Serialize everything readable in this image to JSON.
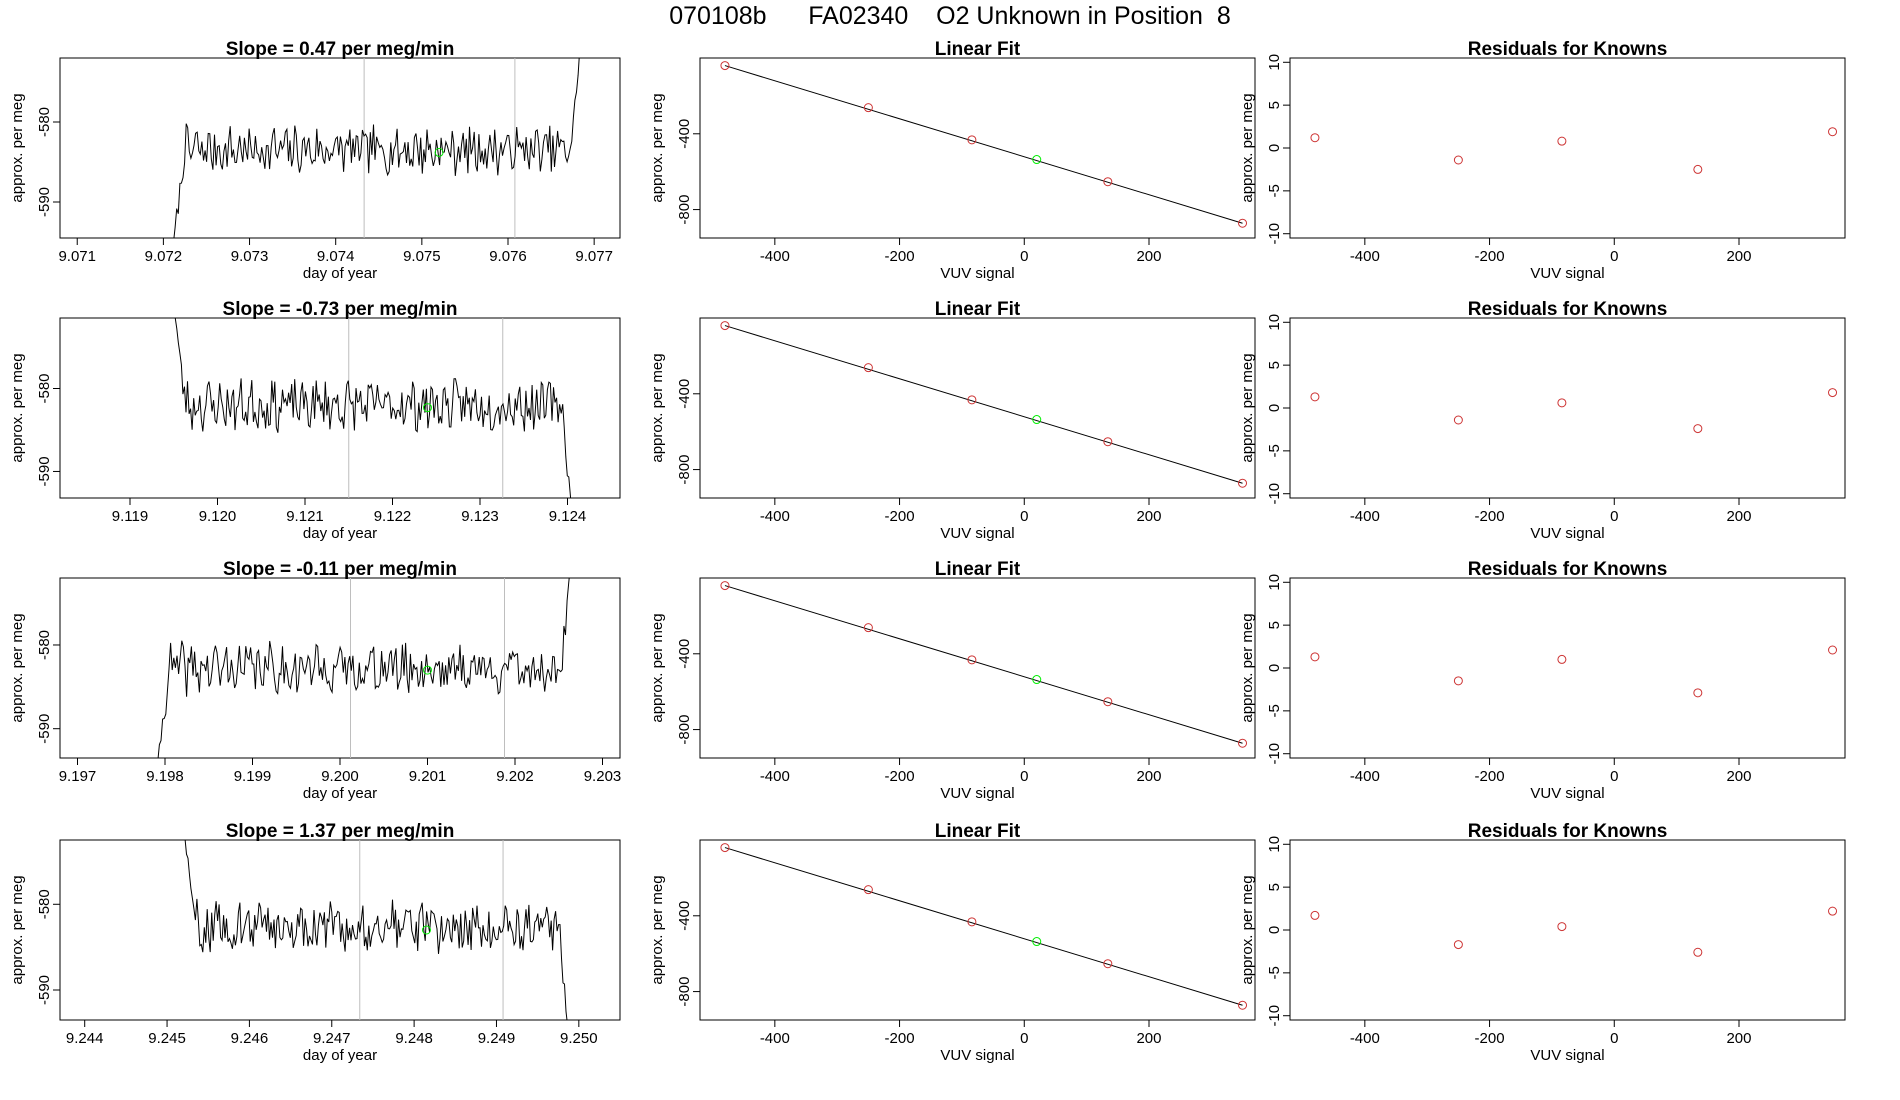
{
  "figure_title": "070108b      FA02340    O2 Unknown in Position  8",
  "colors": {
    "trace": "#000000",
    "vline": "#bebebe",
    "known": "#cd3333",
    "unknown": "#00ee00",
    "fitline": "#000000"
  },
  "chart_data": [
    {
      "type": "line",
      "row": 1,
      "title": "Slope =  0.47  per meg/min",
      "xlabel": "day of year",
      "ylabel": "approx. per meg",
      "xlim": [
        9.0708,
        9.0773
      ],
      "ylim": [
        -594.5,
        -572
      ],
      "xticks": [
        9.071,
        9.072,
        9.073,
        9.074,
        9.075,
        9.076,
        9.077
      ],
      "xtick_labels": [
        "9.071",
        "9.072",
        "9.073",
        "9.074",
        "9.075",
        "9.076",
        "9.077"
      ],
      "yticks": [
        -580,
        -590
      ],
      "ytick_labels": [
        "-580",
        "-590"
      ],
      "start_x": 9.0721,
      "end_x": 9.07685,
      "base": -583.5,
      "trace_start": -597,
      "trace_end": -569,
      "seed": 7,
      "vlines": [
        9.07433,
        9.07608
      ],
      "unknown_point": {
        "x": 9.0752,
        "y": -583.8
      }
    },
    {
      "type": "line",
      "row": 2,
      "title": "Slope =  -0.73  per meg/min",
      "xlabel": "day of year",
      "ylabel": "approx. per meg",
      "xlim": [
        9.1182,
        9.1246
      ],
      "ylim": [
        -593.2,
        -571.5
      ],
      "xticks": [
        9.119,
        9.12,
        9.121,
        9.122,
        9.123,
        9.124
      ],
      "xtick_labels": [
        "9.119",
        "9.120",
        "9.121",
        "9.122",
        "9.123",
        "9.124"
      ],
      "yticks": [
        -580,
        -590
      ],
      "ytick_labels": [
        "-580",
        "-590"
      ],
      "start_x": 9.1195,
      "end_x": 9.12405,
      "base": -582.0,
      "trace_start": -570,
      "trace_end": -595,
      "seed": 23,
      "vlines": [
        9.1215,
        9.12326
      ],
      "unknown_point": {
        "x": 9.1224,
        "y": -582.3
      }
    },
    {
      "type": "line",
      "row": 3,
      "title": "Slope =  -0.11  per meg/min",
      "xlabel": "day of year",
      "ylabel": "approx. per meg",
      "xlim": [
        9.1968,
        9.2032
      ],
      "ylim": [
        -593.5,
        -572
      ],
      "xticks": [
        9.197,
        9.198,
        9.199,
        9.2,
        9.201,
        9.202,
        9.203
      ],
      "xtick_labels": [
        "9.197",
        "9.198",
        "9.199",
        "9.200",
        "9.201",
        "9.202",
        "9.203"
      ],
      "yticks": [
        -580,
        -590
      ],
      "ytick_labels": [
        "-580",
        "-590"
      ],
      "start_x": 9.1979,
      "end_x": 9.20265,
      "base": -582.8,
      "trace_start": -596,
      "trace_end": -569,
      "seed": 41,
      "vlines": [
        9.20012,
        9.20188
      ],
      "unknown_point": {
        "x": 9.201,
        "y": -583.0
      }
    },
    {
      "type": "line",
      "row": 4,
      "title": "Slope =  1.37  per meg/min",
      "xlabel": "day of year",
      "ylabel": "approx. per meg",
      "xlim": [
        9.2437,
        9.2505
      ],
      "ylim": [
        -593.5,
        -572.5
      ],
      "xticks": [
        9.244,
        9.245,
        9.246,
        9.247,
        9.248,
        9.249,
        9.25
      ],
      "xtick_labels": [
        "9.244",
        "9.245",
        "9.246",
        "9.247",
        "9.248",
        "9.249",
        "9.250"
      ],
      "yticks": [
        -580,
        -590
      ],
      "ytick_labels": [
        "-580",
        "-590"
      ],
      "start_x": 9.2452,
      "end_x": 9.24988,
      "base": -582.6,
      "trace_start": -571,
      "trace_end": -596,
      "seed": 59,
      "vlines": [
        9.24734,
        9.24908
      ],
      "unknown_point": {
        "x": 9.24815,
        "y": -583.0
      }
    },
    {
      "type": "scatter",
      "row": 1,
      "title": "Linear Fit",
      "xlabel": "VUV signal",
      "ylabel": "approx. per meg",
      "xlim": [
        -520,
        370
      ],
      "ylim": [
        -950,
        0
      ],
      "xticks": [
        -400,
        -200,
        0,
        200
      ],
      "xtick_labels": [
        "-400",
        "-200",
        "0",
        "200"
      ],
      "yticks": [
        -400,
        -800
      ],
      "ytick_labels": [
        "-400",
        "-800"
      ],
      "fit_x": [
        -480,
        350
      ],
      "knowns": [
        [
          -480,
          -40
        ],
        [
          -250,
          -262
        ],
        [
          -84,
          -432
        ],
        [
          134,
          -653
        ],
        [
          350,
          -872
        ]
      ],
      "unknown": [
        [
          20,
          -536
        ]
      ]
    },
    {
      "type": "scatter",
      "row": 2,
      "title": "Linear Fit",
      "xlabel": "VUV signal",
      "ylabel": "approx. per meg",
      "xlim": [
        -520,
        370
      ],
      "ylim": [
        -950,
        0
      ],
      "xticks": [
        -400,
        -200,
        0,
        200
      ],
      "xtick_labels": [
        "-400",
        "-200",
        "0",
        "200"
      ],
      "yticks": [
        -400,
        -800
      ],
      "ytick_labels": [
        "-400",
        "-800"
      ],
      "fit_x": [
        -480,
        350
      ],
      "knowns": [
        [
          -480,
          -40
        ],
        [
          -250,
          -262
        ],
        [
          -84,
          -432
        ],
        [
          134,
          -653
        ],
        [
          350,
          -872
        ]
      ],
      "unknown": [
        [
          20,
          -536
        ]
      ]
    },
    {
      "type": "scatter",
      "row": 3,
      "title": "Linear Fit",
      "xlabel": "VUV signal",
      "ylabel": "approx. per meg",
      "xlim": [
        -520,
        370
      ],
      "ylim": [
        -950,
        0
      ],
      "xticks": [
        -400,
        -200,
        0,
        200
      ],
      "xtick_labels": [
        "-400",
        "-200",
        "0",
        "200"
      ],
      "yticks": [
        -400,
        -800
      ],
      "ytick_labels": [
        "-400",
        "-800"
      ],
      "fit_x": [
        -480,
        350
      ],
      "knowns": [
        [
          -480,
          -40
        ],
        [
          -250,
          -262
        ],
        [
          -84,
          -432
        ],
        [
          134,
          -653
        ],
        [
          350,
          -872
        ]
      ],
      "unknown": [
        [
          20,
          -536
        ]
      ]
    },
    {
      "type": "scatter",
      "row": 4,
      "title": "Linear Fit",
      "xlabel": "VUV signal",
      "ylabel": "approx. per meg",
      "xlim": [
        -520,
        370
      ],
      "ylim": [
        -950,
        0
      ],
      "xticks": [
        -400,
        -200,
        0,
        200
      ],
      "xtick_labels": [
        "-400",
        "-200",
        "0",
        "200"
      ],
      "yticks": [
        -400,
        -800
      ],
      "ytick_labels": [
        "-400",
        "-800"
      ],
      "fit_x": [
        -480,
        350
      ],
      "knowns": [
        [
          -480,
          -40
        ],
        [
          -250,
          -262
        ],
        [
          -84,
          -432
        ],
        [
          134,
          -653
        ],
        [
          350,
          -872
        ]
      ],
      "unknown": [
        [
          20,
          -536
        ]
      ]
    },
    {
      "type": "scatter",
      "row": 1,
      "title": "Residuals for Knowns",
      "xlabel": "VUV signal",
      "ylabel": "approx. per meg",
      "xlim": [
        -520,
        370
      ],
      "ylim": [
        -10.5,
        10.5
      ],
      "xticks": [
        -400,
        -200,
        0,
        200
      ],
      "xtick_labels": [
        "-400",
        "-200",
        "0",
        "200"
      ],
      "yticks": [
        10,
        5,
        0,
        -5,
        -10
      ],
      "ytick_labels": [
        "10",
        "5",
        "0",
        "-5",
        "-10"
      ],
      "knowns": [
        [
          -480,
          1.2
        ],
        [
          -250,
          -1.4
        ],
        [
          -84,
          0.8
        ],
        [
          134,
          -2.5
        ],
        [
          350,
          1.9
        ]
      ]
    },
    {
      "type": "scatter",
      "row": 2,
      "title": "Residuals for Knowns",
      "xlabel": "VUV signal",
      "ylabel": "approx. per meg",
      "xlim": [
        -520,
        370
      ],
      "ylim": [
        -10.5,
        10.5
      ],
      "xticks": [
        -400,
        -200,
        0,
        200
      ],
      "xtick_labels": [
        "-400",
        "-200",
        "0",
        "200"
      ],
      "yticks": [
        10,
        5,
        0,
        -5,
        -10
      ],
      "ytick_labels": [
        "10",
        "5",
        "0",
        "-5",
        "-10"
      ],
      "knowns": [
        [
          -480,
          1.3
        ],
        [
          -250,
          -1.4
        ],
        [
          -84,
          0.6
        ],
        [
          134,
          -2.4
        ],
        [
          350,
          1.8
        ]
      ]
    },
    {
      "type": "scatter",
      "row": 3,
      "title": "Residuals for Knowns",
      "xlabel": "VUV signal",
      "ylabel": "approx. per meg",
      "xlim": [
        -520,
        370
      ],
      "ylim": [
        -10.5,
        10.5
      ],
      "xticks": [
        -400,
        -200,
        0,
        200
      ],
      "xtick_labels": [
        "-400",
        "-200",
        "0",
        "200"
      ],
      "yticks": [
        10,
        5,
        0,
        -5,
        -10
      ],
      "ytick_labels": [
        "10",
        "5",
        "0",
        "-5",
        "-10"
      ],
      "knowns": [
        [
          -480,
          1.3
        ],
        [
          -250,
          -1.5
        ],
        [
          -84,
          1.0
        ],
        [
          134,
          -2.9
        ],
        [
          350,
          2.1
        ]
      ]
    },
    {
      "type": "scatter",
      "row": 4,
      "title": "Residuals for Knowns",
      "xlabel": "VUV signal",
      "ylabel": "approx. per meg",
      "xlim": [
        -520,
        370
      ],
      "ylim": [
        -10.5,
        10.5
      ],
      "xticks": [
        -400,
        -200,
        0,
        200
      ],
      "xtick_labels": [
        "-400",
        "-200",
        "0",
        "200"
      ],
      "yticks": [
        10,
        5,
        0,
        -5,
        -10
      ],
      "ytick_labels": [
        "10",
        "5",
        "0",
        "-5",
        "-10"
      ],
      "knowns": [
        [
          -480,
          1.7
        ],
        [
          -250,
          -1.7
        ],
        [
          -84,
          0.4
        ],
        [
          134,
          -2.6
        ],
        [
          350,
          2.2
        ]
      ]
    }
  ]
}
